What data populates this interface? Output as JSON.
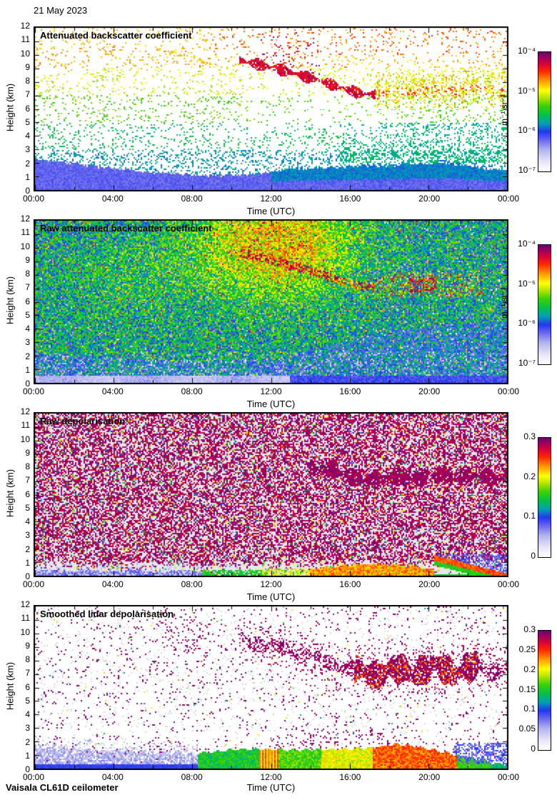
{
  "page": {
    "date_label": "21 May 2023",
    "footer": "Vaisala CL61D ceilometer"
  },
  "axes": {
    "x_label": "Time (UTC)",
    "y_label": "Height (km)",
    "x_ticks": [
      "00:00",
      "04:00",
      "08:00",
      "12:00",
      "16:00",
      "20:00",
      "00:00"
    ],
    "x_tick_hours": [
      0,
      4,
      8,
      12,
      16,
      20,
      24
    ],
    "x_minor_step_hours": 2,
    "y_ticks": [
      0,
      1,
      2,
      3,
      4,
      5,
      6,
      7,
      8,
      9,
      10,
      11,
      12
    ],
    "x_range_hours": [
      0,
      24
    ],
    "y_range_km": [
      0,
      12
    ]
  },
  "colormap_stops": [
    [
      0,
      "#ffffff"
    ],
    [
      0.08,
      "#e6e6f7"
    ],
    [
      0.18,
      "#b2b2ef"
    ],
    [
      0.26,
      "#6a6aee"
    ],
    [
      0.33,
      "#2436f0"
    ],
    [
      0.4,
      "#00a0b4"
    ],
    [
      0.47,
      "#00c050"
    ],
    [
      0.55,
      "#3cd200"
    ],
    [
      0.62,
      "#b4e600"
    ],
    [
      0.68,
      "#ffff00"
    ],
    [
      0.76,
      "#ff9b00"
    ],
    [
      0.84,
      "#ff2800"
    ],
    [
      0.91,
      "#d20040"
    ],
    [
      1,
      "#6e0073"
    ]
  ],
  "shared_features": {
    "cloud_path": [
      [
        0,
        10.8
      ],
      [
        6.2,
        10.4
      ],
      [
        7.4,
        10.1
      ],
      [
        8.8,
        9.4
      ],
      [
        10.4,
        9.6
      ],
      [
        11.5,
        9.2
      ],
      [
        12.5,
        8.9
      ],
      [
        13.5,
        8.5
      ],
      [
        14.5,
        8.1
      ],
      [
        15.5,
        7.6
      ],
      [
        16.5,
        7.15
      ],
      [
        17.5,
        7.05
      ],
      [
        18.5,
        7.3
      ],
      [
        19.5,
        7.25
      ],
      [
        20.5,
        7.45
      ],
      [
        21.5,
        7.3
      ],
      [
        22.5,
        7.5
      ],
      [
        23.2,
        7.2
      ],
      [
        24,
        7.4
      ]
    ]
  },
  "chart_data": [
    {
      "type": "heatmap",
      "title": "Attenuated backscatter coefficient",
      "xlabel": "Time (UTC)",
      "ylabel": "Height (km)",
      "x_range_hours": [
        0,
        24
      ],
      "y_range_km": [
        0,
        12
      ],
      "colorbar": {
        "scale": "log",
        "range_labels": [
          "10⁻⁷",
          "10⁻⁴"
        ],
        "ticks": [
          "10⁻⁴",
          "10⁻⁵",
          "10⁻⁶",
          "10⁻⁷"
        ],
        "units": "m⁻¹ sr⁻¹"
      },
      "features": {
        "seed": 11,
        "bl_top": [
          [
            0,
            2.3
          ],
          [
            2,
            2.0
          ],
          [
            4,
            1.6
          ],
          [
            6,
            1.35
          ],
          [
            8,
            1.15
          ],
          [
            9.5,
            1.1
          ],
          [
            11,
            1.2
          ],
          [
            12,
            1.35
          ],
          [
            13,
            1.6
          ],
          [
            15,
            1.7
          ],
          [
            17,
            1.8
          ],
          [
            19,
            1.9
          ],
          [
            21,
            2.0
          ],
          [
            22.5,
            1.7
          ],
          [
            24,
            1.45
          ]
        ],
        "bl_value": 0.27,
        "bl_green_from_t": 12,
        "bl_green_value": 0.38,
        "wedge": {
          "t0": 20.5,
          "t1": 24,
          "h0": 2.3,
          "h1": 1.2,
          "value": 0.35
        },
        "speckle_levels": [
          [
            0,
            3,
            0.4,
            0.26
          ],
          [
            3,
            5,
            0.47,
            0.13
          ],
          [
            5,
            7,
            0.56,
            0.11
          ],
          [
            7,
            9,
            0.64,
            0.1
          ],
          [
            9,
            12,
            0.74,
            0.09
          ]
        ],
        "green_patch": {
          "t0": 15.5,
          "h0": 2,
          "h1": 5,
          "boost": 1.9,
          "value": 0.44
        },
        "cloud": {
          "t0": 10.4,
          "t1": 17.3,
          "value": 0.84,
          "density": 0.88
        },
        "purple_above": {
          "t0": 11.4,
          "t1": 14.5,
          "density": 0.1
        },
        "virga": {
          "t0": 17.3,
          "t1": 24,
          "density": 0.55
        },
        "pre_streak": {
          "t0": 6.2,
          "t1": 8.9,
          "h_start": 10.4,
          "slope": -0.39,
          "density": 0.3
        }
      }
    },
    {
      "type": "heatmap",
      "title": "Raw attenuated backscatter coefficient",
      "xlabel": "Time (UTC)",
      "ylabel": "Height (km)",
      "x_range_hours": [
        0,
        24
      ],
      "y_range_km": [
        0,
        12
      ],
      "colorbar": {
        "scale": "log",
        "range_labels": [
          "10⁻⁷",
          "10⁻⁴"
        ],
        "ticks": [
          "10⁻⁴",
          "10⁻⁵",
          "10⁻⁶",
          "10⁻⁷"
        ],
        "units": "m⁻¹ sr⁻¹"
      },
      "features": {
        "seed": 22,
        "noise_amp": 0.3,
        "base_green": 0.44,
        "low_blue_top": [
          [
            0,
            2.2
          ],
          [
            8,
            1.6
          ],
          [
            12,
            1.8
          ],
          [
            15,
            2.8
          ],
          [
            17,
            3.6
          ],
          [
            20,
            4.2
          ],
          [
            24,
            4.6
          ]
        ],
        "low_blue_value": 0.36,
        "haze_top": 0.55,
        "haze_split_t": 13,
        "orange_region": {
          "t_center": 12.3,
          "t_sigma": 3.8,
          "h_center": 10.2,
          "h_sigma": 3.6,
          "boost": 0.3
        },
        "yellow_region": {
          "t_center": 5,
          "t_sigma": 3,
          "h_center": 8,
          "h_sigma": 2.6,
          "boost": 0.05
        },
        "cloud": {
          "t0": 10.4,
          "t1": 17.3,
          "value": 0.82,
          "density": 0.6
        },
        "virga": {
          "t0": 17.3,
          "t1": 22.8,
          "value": 0.68,
          "density": 0.3
        },
        "red_burst": {
          "t0": 19,
          "t1": 20.4,
          "value": 0.84,
          "density": 0.5
        }
      }
    },
    {
      "type": "heatmap",
      "title": "Raw depolarisation",
      "xlabel": "Time (UTC)",
      "ylabel": "Height (km)",
      "x_range_hours": [
        0,
        24
      ],
      "y_range_km": [
        0,
        12
      ],
      "colorbar": {
        "scale": "linear",
        "range": [
          0,
          0.3
        ],
        "ticks": [
          "0.3",
          "0.2",
          "0.1",
          "0"
        ],
        "units": ""
      },
      "features": {
        "seed": 33,
        "bg_purple_density": 0.5,
        "bg_outlier_density": 0.1,
        "bg_gray": [
          231,
          231,
          240
        ],
        "cloud": {
          "t0": 14,
          "t1": 24,
          "h_min": 6.5,
          "h_max": 7.9,
          "density": 0.8
        },
        "blue_band": {
          "t1": 8.5,
          "top": 0.42,
          "halo_top": 1.15
        },
        "green_band": {
          "t0": 8.5,
          "t1": 11.5,
          "top": 0.5
        },
        "patchy_band": {
          "t0": 11.5,
          "t1": 14,
          "top": 0.6
        },
        "red_band": {
          "t0": 14,
          "t1": 20.3,
          "top_base": 0.55,
          "top_amp": 0.35
        },
        "wedge": {
          "t0": 20.3,
          "t1": 23.6,
          "h_start": 1.35,
          "fall_rate": 0.365
        }
      }
    },
    {
      "type": "heatmap",
      "title": "Smoothed lidar depolarisation",
      "xlabel": "Time (UTC)",
      "ylabel": "Height (km)",
      "x_range_hours": [
        0,
        24
      ],
      "y_range_km": [
        0,
        12
      ],
      "colorbar": {
        "scale": "linear",
        "range": [
          0,
          0.3
        ],
        "ticks": [
          "0.3",
          "0.25",
          "0.2",
          "0.15",
          "0.1",
          "0.05",
          "0"
        ],
        "units": ""
      },
      "features": {
        "seed": 44,
        "bg_purple_density": 0.045,
        "bg_gray_density": 0.04,
        "bg_color_density": 0.007,
        "gray_rgb": [
          217,
          217,
          224
        ],
        "cloud_segments": [
          [
            6.2,
            8.9,
            0.1,
            0.25
          ],
          [
            10.4,
            16.2,
            0.5,
            0.4
          ],
          [
            16.2,
            22.5,
            0.85,
            0.8
          ],
          [
            22.5,
            24,
            0.55,
            0.5
          ]
        ],
        "orange_frac": 0.22,
        "band_top": [
          [
            0,
            1.6
          ],
          [
            4,
            1.35
          ],
          [
            8,
            1.15
          ],
          [
            9,
            1.25
          ],
          [
            10,
            1.45
          ],
          [
            11.5,
            1.5
          ],
          [
            13,
            1.4
          ],
          [
            15,
            1.45
          ],
          [
            17,
            1.55
          ],
          [
            18.5,
            1.85
          ],
          [
            20,
            1.5
          ],
          [
            21.5,
            1.0
          ],
          [
            22.5,
            0.7
          ],
          [
            23.3,
            0.45
          ],
          [
            24,
            0.35
          ]
        ],
        "band_segments": [
          {
            "t0": 0,
            "t1": 8.3,
            "kind": "blue-haze",
            "value": 0.15
          },
          {
            "t0": 8.3,
            "t1": 11.4,
            "kind": "solid",
            "value": 0.5
          },
          {
            "t0": 11.4,
            "t1": 12.4,
            "kind": "streaks",
            "value": 0.72
          },
          {
            "t0": 12.4,
            "t1": 14.6,
            "kind": "solid",
            "value": 0.55
          },
          {
            "t0": 14.6,
            "t1": 17.2,
            "kind": "solid",
            "value": 0.66
          },
          {
            "t0": 17.2,
            "t1": 21.4,
            "kind": "solid",
            "value": 0.8
          },
          {
            "t0": 21.4,
            "t1": 23.2,
            "kind": "green-wedge",
            "value": 0.5
          },
          {
            "t0": 23.2,
            "t1": 24.01,
            "kind": "solid",
            "value": 0.45
          }
        ],
        "purple_above": {
          "t0": 12,
          "t1": 18.5,
          "extra": 1.3,
          "density": 0.07
        }
      }
    }
  ]
}
